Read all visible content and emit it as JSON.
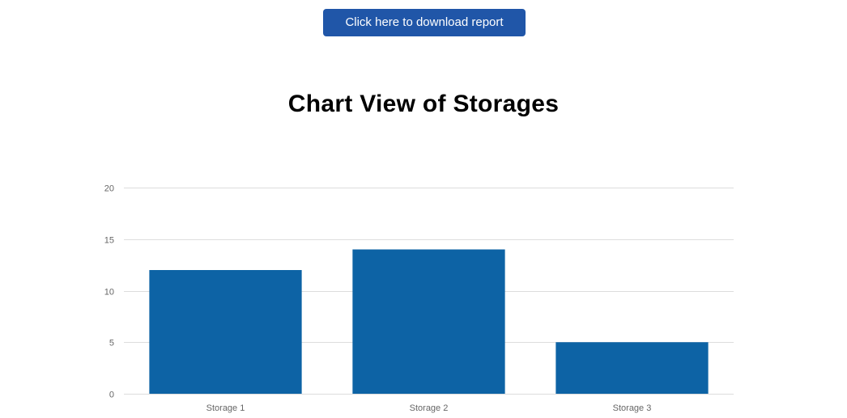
{
  "header": {
    "download_label": "Click here to download report"
  },
  "colors": {
    "button": "#2056a8",
    "bar": "#0d63a5",
    "grid": "#dddddd",
    "tick_text": "#666666"
  },
  "chart_data": {
    "type": "bar",
    "title": "Chart View of Storages",
    "categories": [
      "Storage 1",
      "Storage 2",
      "Storage 3"
    ],
    "values": [
      12,
      14,
      5
    ],
    "ylim": [
      0,
      20
    ],
    "yticks": [
      0,
      5,
      10,
      15,
      20
    ],
    "grid": true,
    "xlabel": "",
    "ylabel": ""
  }
}
